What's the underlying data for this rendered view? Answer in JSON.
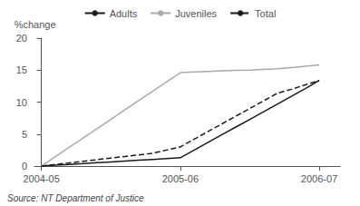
{
  "chart_data": {
    "type": "line",
    "ylabel": "%change",
    "annotations": [
      "Source: NT Department of Justice"
    ],
    "x": [
      0,
      0.1,
      0.2,
      0.3,
      0.4,
      0.5,
      0.6,
      0.7,
      0.8,
      0.9,
      1.0,
      1.1,
      1.2,
      1.3,
      1.4,
      1.5,
      1.6,
      1.7,
      1.8,
      1.9,
      2.0
    ],
    "series": [
      {
        "name": "Adults",
        "color": "#1a1a1a",
        "line_style": "solid",
        "values": [
          0,
          0.13,
          0.26,
          0.39,
          0.52,
          0.65,
          0.78,
          0.91,
          1.04,
          1.17,
          1.3,
          2.5,
          3.7,
          4.9,
          6.1,
          7.3,
          8.5,
          9.7,
          10.9,
          12.1,
          13.4
        ]
      },
      {
        "name": "Juveniles",
        "color": "#aaaaaa",
        "line_style": "solid",
        "values": [
          0,
          1.46,
          2.92,
          4.38,
          5.84,
          7.3,
          8.76,
          10.22,
          11.68,
          13.14,
          14.6,
          14.7,
          14.8,
          14.9,
          14.95,
          15.0,
          15.1,
          15.2,
          15.4,
          15.6,
          15.8
        ]
      },
      {
        "name": "Total",
        "color": "#1a1a1a",
        "line_style": "dashed",
        "values": [
          0,
          0.25,
          0.5,
          0.75,
          1.0,
          1.25,
          1.5,
          1.75,
          2.0,
          2.5,
          3.0,
          4.2,
          5.4,
          6.6,
          7.8,
          9.0,
          10.2,
          11.4,
          12.0,
          12.7,
          13.4
        ]
      }
    ],
    "xlim": [
      -0.05,
      2.15
    ],
    "xticks": [
      {
        "value": 0,
        "label": "2004-05"
      },
      {
        "value": 1,
        "label": "2005-06"
      },
      {
        "value": 2,
        "label": "2006-07"
      }
    ],
    "ylim": [
      0,
      20
    ],
    "yticks": [
      0,
      5,
      10,
      15,
      20
    ],
    "grid": false,
    "legend": "top"
  }
}
